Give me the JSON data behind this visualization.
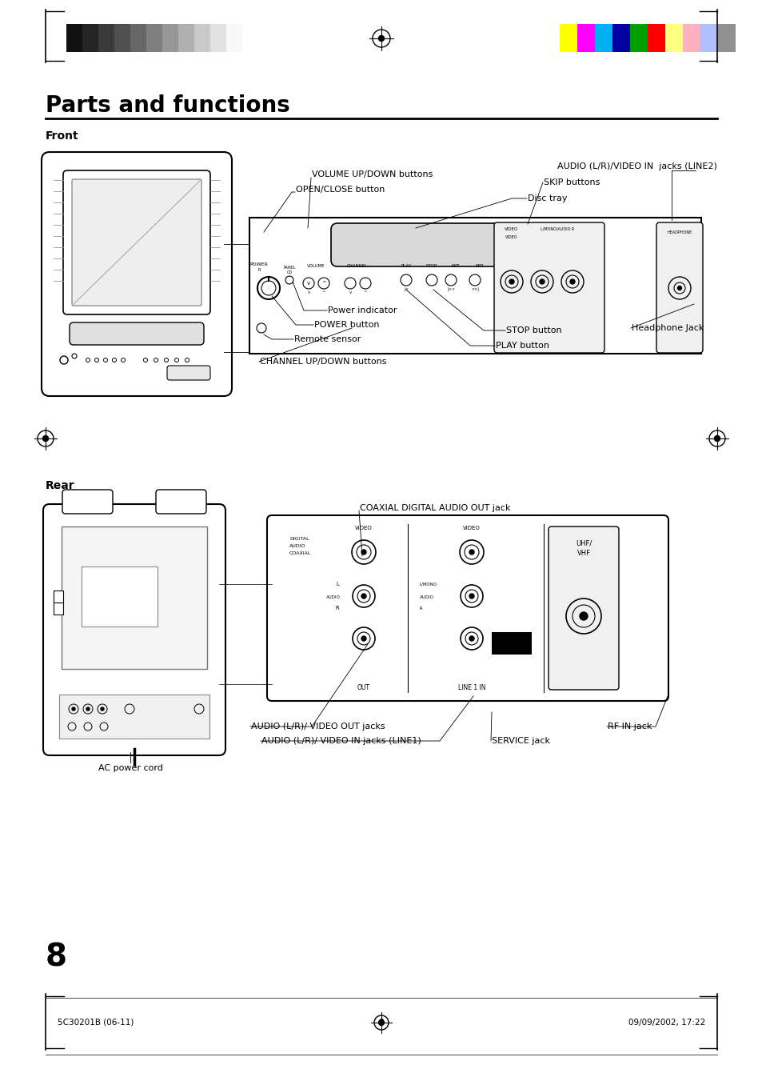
{
  "page_title": "Parts and functions",
  "section_front": "Front",
  "section_rear": "Rear",
  "bg_color": "#ffffff",
  "text_color": "#000000",
  "title_fontsize": 20,
  "section_fontsize": 10,
  "label_fontsize": 8,
  "footer_left": "5C30201B (06-11)",
  "footer_center": "8",
  "footer_right": "09/09/2002, 17:22",
  "page_number": "8",
  "header_grayscale_colors": [
    "#111111",
    "#252525",
    "#3a3a3a",
    "#505050",
    "#666666",
    "#7e7e7e",
    "#979797",
    "#b0b0b0",
    "#c9c9c9",
    "#e2e2e2",
    "#f8f8f8"
  ],
  "header_color_colors": [
    "#ffff00",
    "#ff00ff",
    "#00b0f0",
    "#0000a0",
    "#00a000",
    "#ff0000",
    "#ffff80",
    "#ffb0c0",
    "#b0c0ff",
    "#909090"
  ]
}
